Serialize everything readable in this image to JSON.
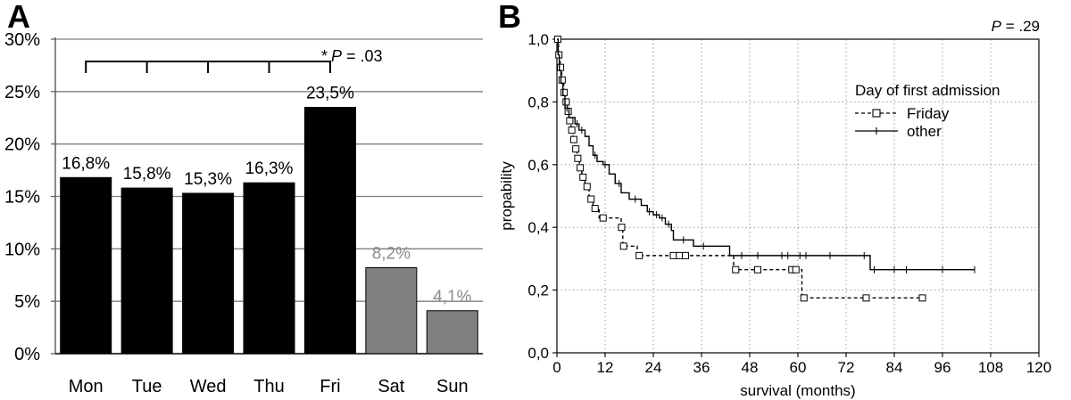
{
  "chart_data": [
    {
      "panel_label": "A",
      "type": "bar",
      "categories": [
        "Mon",
        "Tue",
        "Wed",
        "Thu",
        "Fri",
        "Sat",
        "Sun"
      ],
      "values": [
        16.8,
        15.8,
        15.3,
        16.3,
        23.5,
        8.2,
        4.1
      ],
      "value_labels": [
        "16,8%",
        "15,8%",
        "15,3%",
        "16,3%",
        "23,5%",
        "8,2%",
        "4,1%"
      ],
      "bar_colors": [
        "#000000",
        "#000000",
        "#000000",
        "#000000",
        "#000000",
        "#808080",
        "#808080"
      ],
      "label_colors": [
        "#000000",
        "#000000",
        "#000000",
        "#000000",
        "#000000",
        "#8c8c8c",
        "#8c8c8c"
      ],
      "ylim": [
        0,
        30
      ],
      "yticks": [
        0,
        5,
        10,
        15,
        20,
        25,
        30
      ],
      "ytick_labels": [
        "0%",
        "5%",
        "10%",
        "15%",
        "20%",
        "25%",
        "30%"
      ],
      "grid": "horizontal",
      "annotation": {
        "star": "*",
        "p_italic": "P",
        "p_rest": " = .03"
      }
    },
    {
      "panel_label": "B",
      "type": "line",
      "subtype": "kaplan-meier step curves",
      "xlabel": "survival (months)",
      "ylabel": "propability",
      "xlim": [
        0,
        120
      ],
      "ylim": [
        0,
        1
      ],
      "xticks": [
        0,
        12,
        24,
        36,
        48,
        60,
        72,
        84,
        96,
        108,
        120
      ],
      "xtick_labels": [
        "0",
        "12",
        "24",
        "36",
        "48",
        "60",
        "72",
        "84",
        "96",
        "108",
        "120"
      ],
      "yticks": [
        0,
        0.2,
        0.4,
        0.6,
        0.8,
        1.0
      ],
      "ytick_labels": [
        "0,0",
        "0,2",
        "0,4",
        "0,6",
        "0,8",
        "1,0"
      ],
      "grid": "dotted",
      "annotation": {
        "p_italic": "P",
        "p_rest": " = .29"
      },
      "legend": {
        "title": "Day of first admission",
        "position": "top-right"
      },
      "series": [
        {
          "name": "Friday",
          "style": "dashed",
          "marker": "open-square",
          "steps": [
            [
              0,
              1.0
            ],
            [
              0.4,
              0.95
            ],
            [
              0.8,
              0.91
            ],
            [
              1.2,
              0.87
            ],
            [
              1.7,
              0.83
            ],
            [
              2.1,
              0.8
            ],
            [
              2.6,
              0.77
            ],
            [
              3.0,
              0.74
            ],
            [
              3.5,
              0.71
            ],
            [
              4.0,
              0.68
            ],
            [
              4.5,
              0.65
            ],
            [
              5.0,
              0.62
            ],
            [
              5.6,
              0.59
            ],
            [
              6.2,
              0.56
            ],
            [
              7.0,
              0.53
            ],
            [
              8.0,
              0.49
            ],
            [
              9.0,
              0.46
            ],
            [
              10.5,
              0.43
            ],
            [
              16.0,
              0.4
            ],
            [
              16.4,
              0.34
            ],
            [
              20.0,
              0.31
            ],
            [
              44.0,
              0.265
            ],
            [
              61.0,
              0.175
            ],
            [
              91.0,
              0.175
            ]
          ],
          "markers": [
            [
              0.2,
              1.0
            ],
            [
              0.5,
              0.95
            ],
            [
              0.9,
              0.91
            ],
            [
              1.3,
              0.87
            ],
            [
              1.8,
              0.83
            ],
            [
              2.3,
              0.8
            ],
            [
              2.8,
              0.77
            ],
            [
              3.2,
              0.74
            ],
            [
              3.7,
              0.71
            ],
            [
              4.2,
              0.68
            ],
            [
              4.7,
              0.65
            ],
            [
              5.2,
              0.62
            ],
            [
              5.8,
              0.59
            ],
            [
              6.5,
              0.56
            ],
            [
              7.5,
              0.53
            ],
            [
              8.5,
              0.49
            ],
            [
              9.5,
              0.46
            ],
            [
              11.5,
              0.43
            ],
            [
              16.1,
              0.4
            ],
            [
              16.6,
              0.34
            ],
            [
              20.5,
              0.31
            ],
            [
              29.0,
              0.31
            ],
            [
              30.5,
              0.31
            ],
            [
              32.0,
              0.31
            ],
            [
              44.5,
              0.265
            ],
            [
              50.0,
              0.265
            ],
            [
              58.5,
              0.265
            ],
            [
              59.5,
              0.265
            ],
            [
              61.5,
              0.175
            ],
            [
              77.0,
              0.175
            ],
            [
              91.0,
              0.175
            ]
          ]
        },
        {
          "name": "other",
          "style": "solid",
          "marker": "tick",
          "steps": [
            [
              0,
              1.0
            ],
            [
              0.3,
              0.95
            ],
            [
              0.6,
              0.9
            ],
            [
              1.0,
              0.86
            ],
            [
              1.5,
              0.82
            ],
            [
              2.0,
              0.78
            ],
            [
              3.0,
              0.75
            ],
            [
              4.5,
              0.73
            ],
            [
              5.5,
              0.71
            ],
            [
              7.0,
              0.69
            ],
            [
              8.0,
              0.66
            ],
            [
              9.0,
              0.63
            ],
            [
              10.0,
              0.61
            ],
            [
              11.5,
              0.6
            ],
            [
              13.0,
              0.57
            ],
            [
              14.5,
              0.54
            ],
            [
              16.0,
              0.51
            ],
            [
              18.0,
              0.49
            ],
            [
              21.0,
              0.47
            ],
            [
              22.5,
              0.45
            ],
            [
              24.0,
              0.44
            ],
            [
              25.5,
              0.43
            ],
            [
              27.0,
              0.41
            ],
            [
              28.5,
              0.39
            ],
            [
              29.0,
              0.36
            ],
            [
              34.0,
              0.34
            ],
            [
              43.0,
              0.31
            ],
            [
              78.0,
              0.265
            ],
            [
              104.0,
              0.265
            ]
          ],
          "markers": [
            [
              2.5,
              0.78
            ],
            [
              5.0,
              0.73
            ],
            [
              6.2,
              0.71
            ],
            [
              9.5,
              0.63
            ],
            [
              12.0,
              0.6
            ],
            [
              15.5,
              0.54
            ],
            [
              19.5,
              0.49
            ],
            [
              23.0,
              0.45
            ],
            [
              24.8,
              0.44
            ],
            [
              26.2,
              0.43
            ],
            [
              27.8,
              0.41
            ],
            [
              31.5,
              0.36
            ],
            [
              36.5,
              0.34
            ],
            [
              46.0,
              0.31
            ],
            [
              50.0,
              0.31
            ],
            [
              56.0,
              0.31
            ],
            [
              57.5,
              0.31
            ],
            [
              60.5,
              0.31
            ],
            [
              62.0,
              0.31
            ],
            [
              68.0,
              0.31
            ],
            [
              76.5,
              0.31
            ],
            [
              79.0,
              0.265
            ],
            [
              84.0,
              0.265
            ],
            [
              87.0,
              0.265
            ],
            [
              96.0,
              0.265
            ],
            [
              104.0,
              0.265
            ]
          ]
        }
      ]
    }
  ]
}
